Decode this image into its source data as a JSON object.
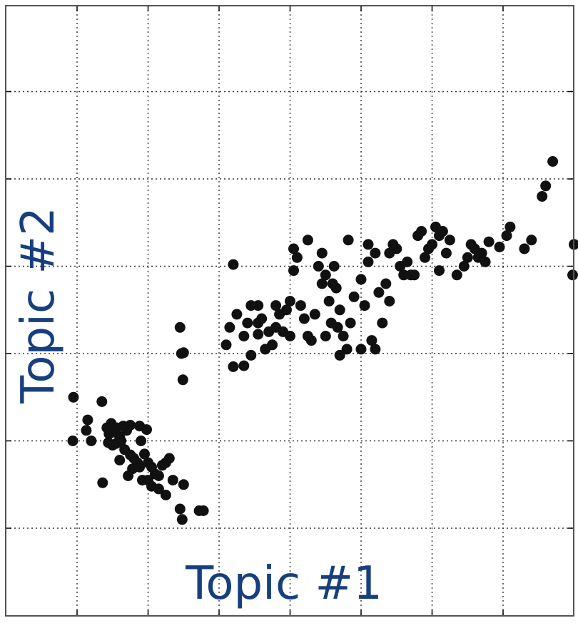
{
  "colors": {
    "points": "#111111",
    "axis_labels": "#173f7e",
    "grid": "#333333",
    "frame": "#555555",
    "background": "#ffffff"
  },
  "chart_data": {
    "type": "scatter",
    "xlabel": "Topic #1",
    "ylabel": "Topic #2",
    "grid": true,
    "xlim": [
      -1,
      7
    ],
    "ylim": [
      -1,
      6
    ],
    "xticks": [
      0,
      1,
      2,
      3,
      4,
      5,
      6
    ],
    "yticks": [
      0,
      1,
      2,
      3,
      4,
      5
    ],
    "series": [
      {
        "points": [
          [
            -0.05,
            1.5
          ],
          [
            -0.06,
            1.0
          ],
          [
            0.15,
            1.24
          ],
          [
            0.13,
            1.12
          ],
          [
            0.2,
            1.0
          ],
          [
            0.35,
            1.45
          ],
          [
            0.42,
            1.15
          ],
          [
            0.45,
            1.08
          ],
          [
            0.48,
            1.2
          ],
          [
            0.52,
            1.1
          ],
          [
            0.56,
            1.15
          ],
          [
            0.6,
            1.05
          ],
          [
            0.65,
            1.17
          ],
          [
            0.7,
            1.12
          ],
          [
            0.75,
            1.18
          ],
          [
            0.44,
            0.98
          ],
          [
            0.5,
            0.95
          ],
          [
            0.55,
            0.97
          ],
          [
            0.62,
            1.0
          ],
          [
            0.67,
            0.9
          ],
          [
            0.75,
            0.84
          ],
          [
            0.8,
            0.8
          ],
          [
            0.85,
            0.75
          ],
          [
            0.9,
            1.0
          ],
          [
            0.95,
            0.85
          ],
          [
            1.0,
            0.75
          ],
          [
            1.05,
            0.7
          ],
          [
            1.1,
            0.62
          ],
          [
            1.15,
            0.6
          ],
          [
            1.2,
            0.72
          ],
          [
            1.25,
            0.75
          ],
          [
            1.3,
            0.8
          ],
          [
            0.88,
            0.7
          ],
          [
            0.78,
            0.68
          ],
          [
            0.72,
            0.6
          ],
          [
            0.6,
            0.78
          ],
          [
            0.92,
            0.55
          ],
          [
            1.0,
            0.55
          ],
          [
            1.05,
            0.48
          ],
          [
            1.15,
            0.45
          ],
          [
            1.25,
            0.38
          ],
          [
            1.35,
            0.55
          ],
          [
            1.5,
            0.5
          ],
          [
            1.72,
            0.2
          ],
          [
            1.45,
            0.22
          ],
          [
            1.48,
            0.1
          ],
          [
            1.78,
            0.2
          ],
          [
            0.36,
            0.52
          ],
          [
            0.88,
            1.17
          ],
          [
            0.98,
            1.13
          ],
          [
            1.45,
            2.3
          ],
          [
            1.47,
            2.0
          ],
          [
            1.5,
            2.01
          ],
          [
            1.49,
            1.7
          ],
          [
            2.1,
            2.1
          ],
          [
            2.15,
            2.3
          ],
          [
            2.2,
            3.02
          ],
          [
            2.2,
            1.85
          ],
          [
            2.35,
            1.86
          ],
          [
            2.25,
            2.45
          ],
          [
            2.35,
            2.2
          ],
          [
            2.4,
            2.35
          ],
          [
            2.45,
            2.55
          ],
          [
            2.55,
            2.22
          ],
          [
            2.55,
            2.35
          ],
          [
            2.55,
            2.55
          ],
          [
            2.6,
            2.4
          ],
          [
            2.65,
            2.05
          ],
          [
            2.7,
            2.25
          ],
          [
            2.75,
            2.1
          ],
          [
            2.8,
            2.3
          ],
          [
            2.8,
            2.55
          ],
          [
            2.85,
            2.45
          ],
          [
            2.9,
            2.25
          ],
          [
            2.95,
            2.5
          ],
          [
            3.0,
            2.2
          ],
          [
            3.0,
            2.6
          ],
          [
            3.05,
            2.95
          ],
          [
            3.05,
            3.2
          ],
          [
            3.1,
            3.1
          ],
          [
            3.15,
            2.55
          ],
          [
            3.2,
            2.4
          ],
          [
            3.25,
            2.2
          ],
          [
            3.25,
            3.3
          ],
          [
            3.3,
            2.15
          ],
          [
            3.35,
            2.45
          ],
          [
            3.4,
            3.0
          ],
          [
            3.45,
            2.8
          ],
          [
            3.45,
            3.15
          ],
          [
            3.5,
            2.2
          ],
          [
            3.5,
            2.9
          ],
          [
            3.55,
            2.6
          ],
          [
            3.6,
            2.8
          ],
          [
            3.62,
            3.0
          ],
          [
            3.65,
            2.75
          ],
          [
            3.67,
            2.3
          ],
          [
            3.7,
            2.5
          ],
          [
            3.75,
            2.2
          ],
          [
            3.8,
            2.05
          ],
          [
            3.82,
            3.3
          ],
          [
            3.85,
            2.35
          ],
          [
            3.9,
            2.65
          ],
          [
            4.0,
            2.05
          ],
          [
            4.0,
            2.85
          ],
          [
            4.05,
            2.55
          ],
          [
            4.1,
            3.05
          ],
          [
            4.15,
            2.15
          ],
          [
            4.2,
            3.15
          ],
          [
            4.25,
            2.7
          ],
          [
            4.3,
            2.35
          ],
          [
            4.35,
            2.8
          ],
          [
            4.4,
            3.15
          ],
          [
            4.45,
            3.25
          ],
          [
            4.5,
            3.2
          ],
          [
            4.55,
            3.0
          ],
          [
            4.6,
            2.9
          ],
          [
            4.65,
            3.05
          ],
          [
            4.7,
            2.9
          ],
          [
            4.75,
            2.9
          ],
          [
            4.8,
            3.35
          ],
          [
            4.85,
            3.4
          ],
          [
            4.9,
            3.1
          ],
          [
            4.95,
            3.2
          ],
          [
            5.0,
            3.25
          ],
          [
            5.05,
            3.45
          ],
          [
            5.1,
            3.35
          ],
          [
            5.15,
            3.4
          ],
          [
            5.2,
            3.15
          ],
          [
            5.25,
            3.3
          ],
          [
            5.35,
            2.9
          ],
          [
            5.45,
            3.0
          ],
          [
            5.5,
            3.1
          ],
          [
            5.55,
            3.25
          ],
          [
            5.6,
            3.2
          ],
          [
            5.65,
            3.1
          ],
          [
            5.7,
            3.15
          ],
          [
            5.75,
            3.05
          ],
          [
            5.8,
            3.28
          ],
          [
            5.95,
            3.22
          ],
          [
            6.05,
            3.35
          ],
          [
            6.1,
            3.45
          ],
          [
            6.3,
            3.2
          ],
          [
            6.4,
            3.3
          ],
          [
            6.55,
            3.8
          ],
          [
            6.6,
            3.92
          ],
          [
            6.7,
            4.2
          ],
          [
            6.98,
            2.9
          ],
          [
            7.0,
            3.25
          ],
          [
            4.4,
            2.6
          ],
          [
            4.1,
            3.25
          ],
          [
            4.2,
            2.05
          ],
          [
            5.1,
            2.95
          ],
          [
            2.45,
            1.98
          ],
          [
            3.7,
            1.98
          ],
          [
            3.58,
            2.35
          ]
        ]
      }
    ]
  }
}
